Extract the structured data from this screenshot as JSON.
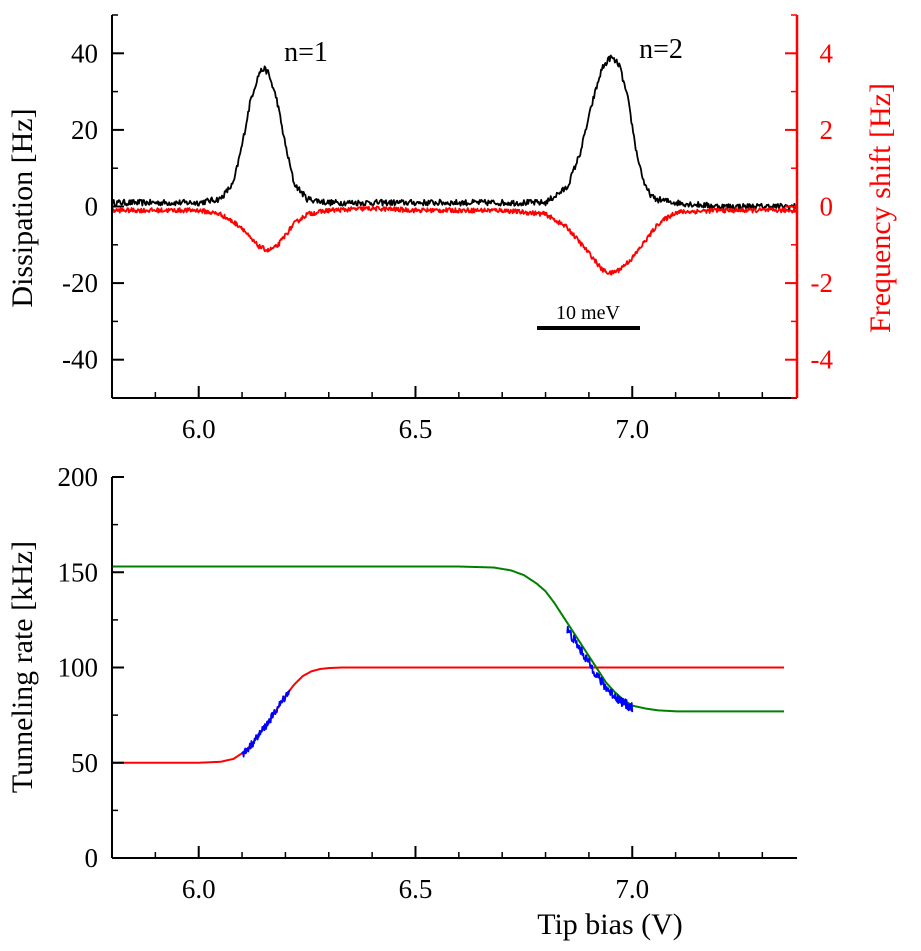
{
  "chart_data": [
    {
      "type": "line",
      "panel": "top",
      "xlim": [
        5.8,
        7.38
      ],
      "x_ticks": [
        "6.0",
        "6.5",
        "7.0"
      ],
      "left_axis": {
        "label": "Dissipation [Hz]",
        "ylim": [
          -50,
          50
        ],
        "ticks": [
          "40",
          "20",
          "0",
          "-20",
          "-40"
        ],
        "color": "#000000"
      },
      "right_axis": {
        "label": "Frequency shift [Hz]",
        "ylim": [
          -5,
          5
        ],
        "ticks": [
          "4",
          "2",
          "0",
          "-2",
          "-4"
        ],
        "color": "#ff0000"
      },
      "series": [
        {
          "axis": "left",
          "color": "#000000",
          "x": [
            5.8,
            6.0,
            6.05,
            6.08,
            6.1,
            6.12,
            6.14,
            6.15,
            6.16,
            6.18,
            6.2,
            6.22,
            6.25,
            6.3,
            6.4,
            6.5,
            6.6,
            6.7,
            6.8,
            6.85,
            6.88,
            6.91,
            6.93,
            6.95,
            6.97,
            6.99,
            7.01,
            7.03,
            7.05,
            7.1,
            7.2,
            7.38
          ],
          "y": [
            1,
            1,
            2,
            6,
            16,
            28,
            35,
            36,
            35,
            28,
            16,
            6,
            2,
            1,
            1,
            1,
            1,
            1,
            1,
            5,
            14,
            28,
            36,
            39,
            37,
            28,
            14,
            5,
            2,
            1,
            0,
            0
          ]
        },
        {
          "axis": "right",
          "color": "#ff0000",
          "x": [
            5.8,
            6.0,
            6.05,
            6.1,
            6.12,
            6.14,
            6.16,
            6.18,
            6.2,
            6.22,
            6.25,
            6.3,
            6.4,
            6.5,
            6.6,
            6.7,
            6.8,
            6.85,
            6.88,
            6.91,
            6.93,
            6.95,
            6.97,
            7.0,
            7.03,
            7.06,
            7.1,
            7.2,
            7.38
          ],
          "y": [
            -0.1,
            -0.1,
            -0.2,
            -0.55,
            -0.85,
            -1.05,
            -1.15,
            -1.05,
            -0.75,
            -0.45,
            -0.2,
            -0.1,
            -0.05,
            -0.1,
            -0.1,
            -0.1,
            -0.2,
            -0.55,
            -0.95,
            -1.35,
            -1.65,
            -1.75,
            -1.65,
            -1.35,
            -0.9,
            -0.45,
            -0.15,
            -0.1,
            -0.1
          ]
        }
      ],
      "annotations": [
        "n=1",
        "n=2"
      ],
      "scale_bar_label": "10 meV"
    },
    {
      "type": "line",
      "panel": "bottom",
      "xlabel": "Tip bias (V)",
      "ylabel": "Tunneling rate [kHz]",
      "xlim": [
        5.8,
        7.38
      ],
      "ylim": [
        0,
        200
      ],
      "x_ticks": [
        "6.0",
        "6.5",
        "7.0"
      ],
      "y_ticks": [
        "200",
        "150",
        "100",
        "50",
        "0"
      ],
      "series": [
        {
          "color": "#ff0000",
          "x": [
            5.8,
            6.0,
            6.05,
            6.08,
            6.1,
            6.12,
            6.14,
            6.16,
            6.18,
            6.2,
            6.22,
            6.24,
            6.26,
            6.28,
            6.3,
            6.33,
            6.4,
            6.6,
            6.8,
            7.0,
            7.2,
            7.35
          ],
          "y": [
            50,
            50,
            50.5,
            52,
            55,
            59,
            65,
            71,
            78,
            85,
            91,
            95.5,
            98,
            99.2,
            99.7,
            100,
            100,
            100,
            100,
            100,
            100,
            100
          ]
        },
        {
          "color": "#008000",
          "x": [
            5.8,
            6.0,
            6.2,
            6.4,
            6.6,
            6.68,
            6.72,
            6.75,
            6.78,
            6.8,
            6.82,
            6.84,
            6.86,
            6.88,
            6.9,
            6.92,
            6.94,
            6.96,
            6.98,
            7.0,
            7.03,
            7.06,
            7.1,
            7.2,
            7.35
          ],
          "y": [
            153,
            153,
            153,
            153,
            153,
            152.5,
            151,
            148.5,
            144,
            140,
            134,
            127,
            120,
            113,
            106,
            99,
            92,
            87,
            83,
            80,
            78.5,
            77.5,
            77,
            77,
            77
          ]
        },
        {
          "color": "#0000ff",
          "x": [
            6.1,
            6.12,
            6.14,
            6.16,
            6.18,
            6.2,
            6.21
          ],
          "y": [
            54,
            59,
            65,
            71,
            78,
            85,
            88
          ]
        },
        {
          "color": "#0000ff",
          "x": [
            6.85,
            6.87,
            6.89,
            6.91,
            6.93,
            6.95,
            6.97,
            6.99,
            7.0
          ],
          "y": [
            120,
            113,
            106,
            99,
            92,
            87,
            83,
            80,
            79
          ]
        }
      ]
    }
  ]
}
